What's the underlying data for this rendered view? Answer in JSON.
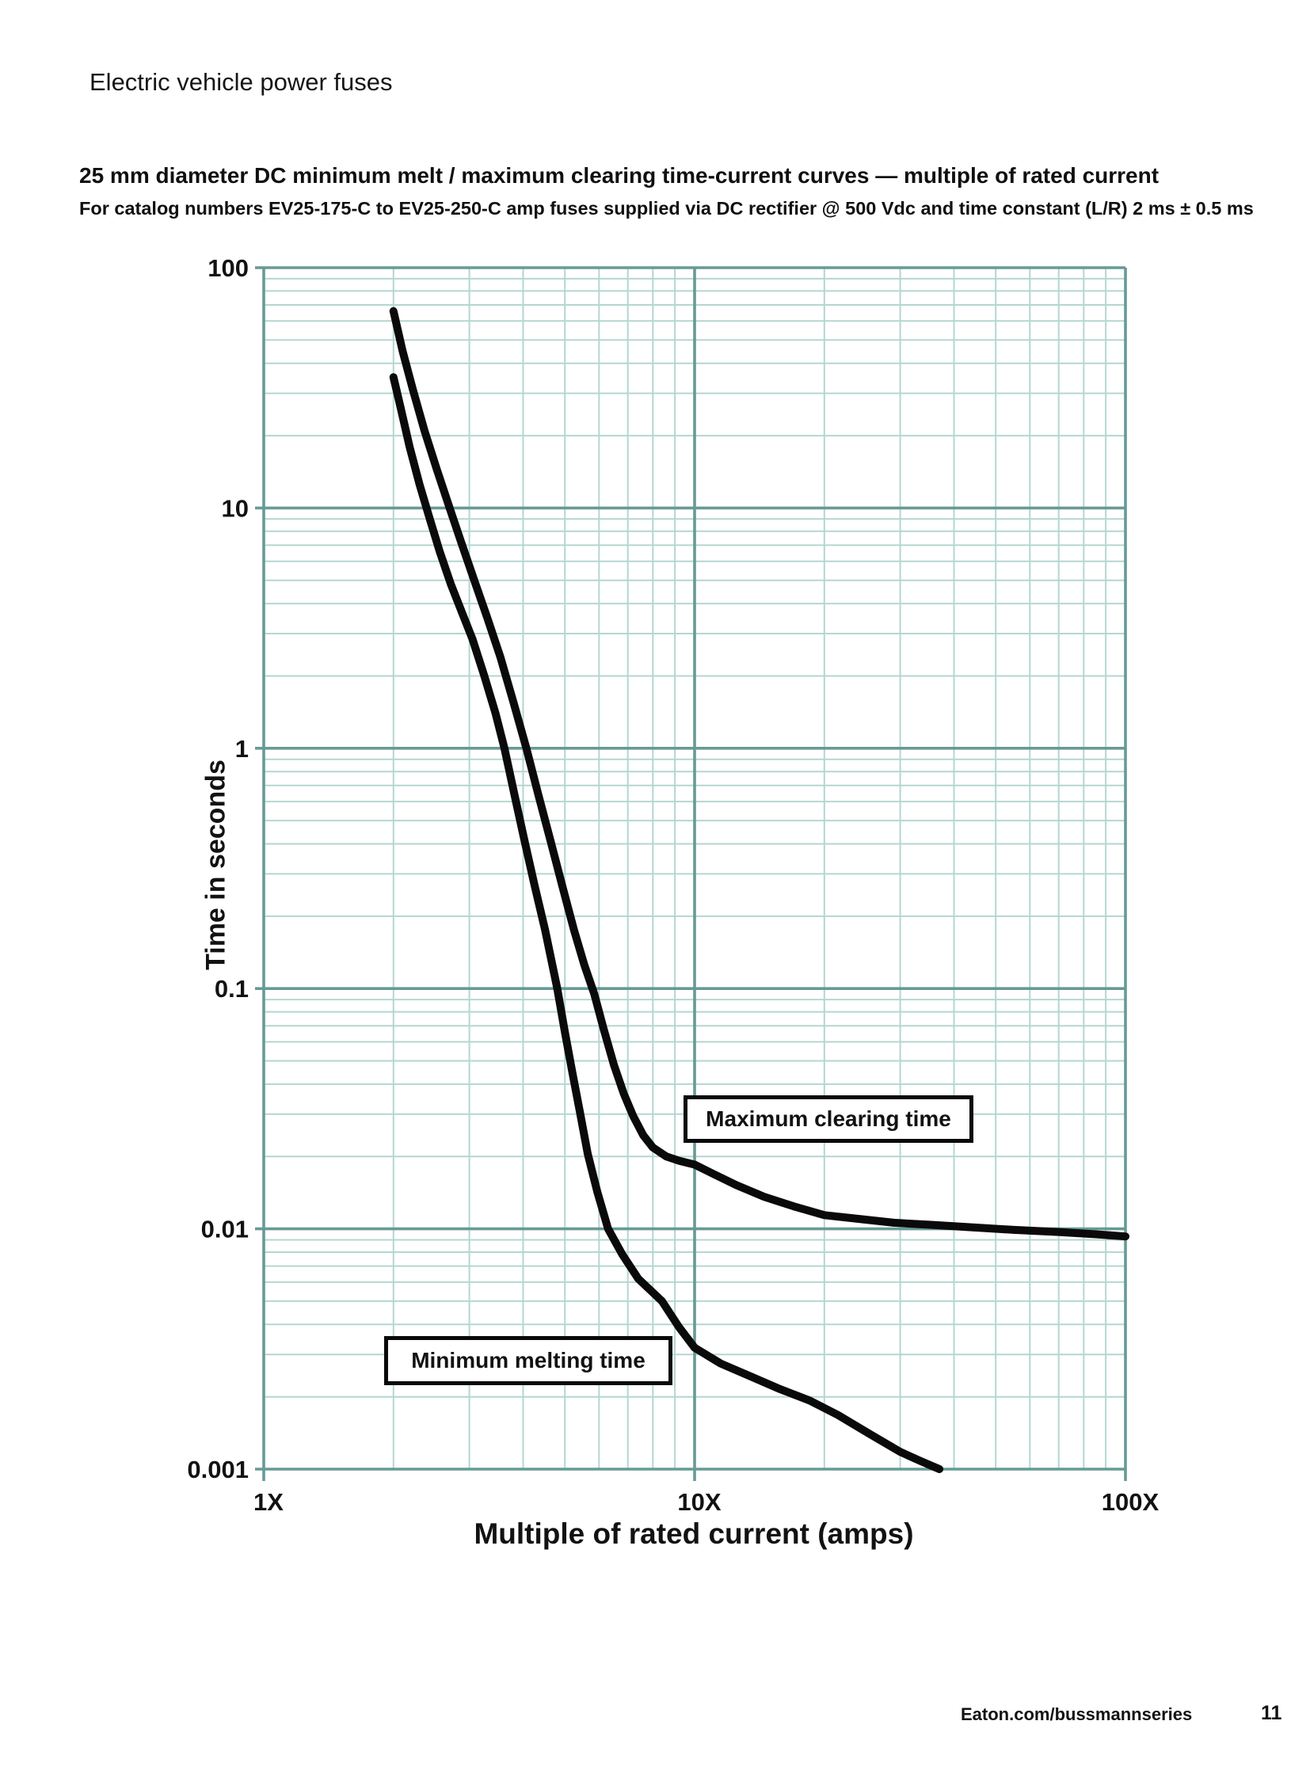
{
  "page": {
    "header": "Electric vehicle power fuses",
    "title": "25 mm diameter DC minimum melt / maximum clearing time-current curves — multiple of rated current",
    "subtitle": "For catalog numbers EV25-175-C to EV25-250-C amp fuses supplied via DC rectifier @ 500 Vdc and time constant (L/R) 2 ms ± 0.5 ms",
    "footer": {
      "link": "Eaton.com/bussmannseries",
      "page_number": "11"
    }
  },
  "chart_data": {
    "type": "line",
    "title": "25 mm diameter DC minimum melt / maximum clearing time-current curves — multiple of rated current",
    "xlabel": "Multiple of rated current (amps)",
    "ylabel": "Time in seconds",
    "x_scale": "log",
    "y_scale": "log",
    "xlim": [
      1,
      100
    ],
    "ylim": [
      0.001,
      100
    ],
    "grid": "log major and minor, on",
    "legend_position": "inline boxed labels",
    "x_ticks": [
      {
        "label": "1X",
        "value": 1
      },
      {
        "label": "10X",
        "value": 10
      },
      {
        "label": "100X",
        "value": 100
      }
    ],
    "y_ticks": [
      {
        "label": "100",
        "value": 100
      },
      {
        "label": "10",
        "value": 10
      },
      {
        "label": "1",
        "value": 1
      },
      {
        "label": "0.1",
        "value": 0.1
      },
      {
        "label": "0.01",
        "value": 0.01
      },
      {
        "label": "0.001",
        "value": 0.001
      }
    ],
    "colors": {
      "grid_minor": "#b5d6d2",
      "grid_major": "#679a96",
      "curve": "#0a0a0a"
    },
    "series": [
      {
        "name": "Maximum clearing time",
        "color": "#0a0a0a",
        "points": [
          [
            2.0,
            66
          ],
          [
            2.1,
            45
          ],
          [
            2.22,
            31
          ],
          [
            2.36,
            21
          ],
          [
            2.52,
            14.5
          ],
          [
            2.7,
            10
          ],
          [
            2.88,
            7.1
          ],
          [
            3.08,
            5.0
          ],
          [
            3.3,
            3.5
          ],
          [
            3.54,
            2.4
          ],
          [
            3.8,
            1.55
          ],
          [
            4.07,
            1.0
          ],
          [
            4.35,
            0.63
          ],
          [
            4.65,
            0.4
          ],
          [
            4.95,
            0.26
          ],
          [
            5.25,
            0.175
          ],
          [
            5.55,
            0.125
          ],
          [
            5.85,
            0.095
          ],
          [
            6.15,
            0.068
          ],
          [
            6.5,
            0.048
          ],
          [
            6.85,
            0.0365
          ],
          [
            7.2,
            0.0295
          ],
          [
            7.6,
            0.0245
          ],
          [
            8.0,
            0.0218
          ],
          [
            8.6,
            0.02
          ],
          [
            9.2,
            0.0192
          ],
          [
            10.0,
            0.0185
          ],
          [
            11.0,
            0.017
          ],
          [
            12.5,
            0.0152
          ],
          [
            14.5,
            0.0136
          ],
          [
            17.0,
            0.0124
          ],
          [
            20.0,
            0.0114
          ],
          [
            24.0,
            0.011
          ],
          [
            29.0,
            0.0106
          ],
          [
            35.0,
            0.0104
          ],
          [
            42.0,
            0.0102
          ],
          [
            55.0,
            0.0099
          ],
          [
            70.0,
            0.0097
          ],
          [
            85.0,
            0.0095
          ],
          [
            100.0,
            0.0093
          ]
        ]
      },
      {
        "name": "Minimum melting time",
        "color": "#0a0a0a",
        "points": [
          [
            2.0,
            35
          ],
          [
            2.08,
            26
          ],
          [
            2.18,
            18
          ],
          [
            2.3,
            12.5
          ],
          [
            2.42,
            9.2
          ],
          [
            2.56,
            6.6
          ],
          [
            2.72,
            4.8
          ],
          [
            2.88,
            3.7
          ],
          [
            3.05,
            2.85
          ],
          [
            3.25,
            2.0
          ],
          [
            3.45,
            1.4
          ],
          [
            3.62,
            1.0
          ],
          [
            3.82,
            0.64
          ],
          [
            4.02,
            0.42
          ],
          [
            4.25,
            0.27
          ],
          [
            4.5,
            0.175
          ],
          [
            4.8,
            0.1
          ],
          [
            5.0,
            0.066
          ],
          [
            5.2,
            0.045
          ],
          [
            5.42,
            0.0305
          ],
          [
            5.65,
            0.0205
          ],
          [
            5.95,
            0.0142
          ],
          [
            6.3,
            0.01
          ],
          [
            6.8,
            0.0078
          ],
          [
            7.4,
            0.0062
          ],
          [
            8.4,
            0.005
          ],
          [
            9.2,
            0.0039
          ],
          [
            10.0,
            0.0032
          ],
          [
            11.5,
            0.00275
          ],
          [
            13.5,
            0.00243
          ],
          [
            15.8,
            0.00215
          ],
          [
            18.5,
            0.00193
          ],
          [
            21.5,
            0.00168
          ],
          [
            25.5,
            0.0014
          ],
          [
            30.0,
            0.00118
          ],
          [
            33.5,
            0.00108
          ],
          [
            37.0,
            0.001
          ]
        ]
      }
    ],
    "annotations": [
      {
        "label": "Maximum clearing time",
        "points_to_series": "Maximum clearing time"
      },
      {
        "label": "Minimum melting time",
        "points_to_series": "Minimum melting time"
      }
    ]
  }
}
